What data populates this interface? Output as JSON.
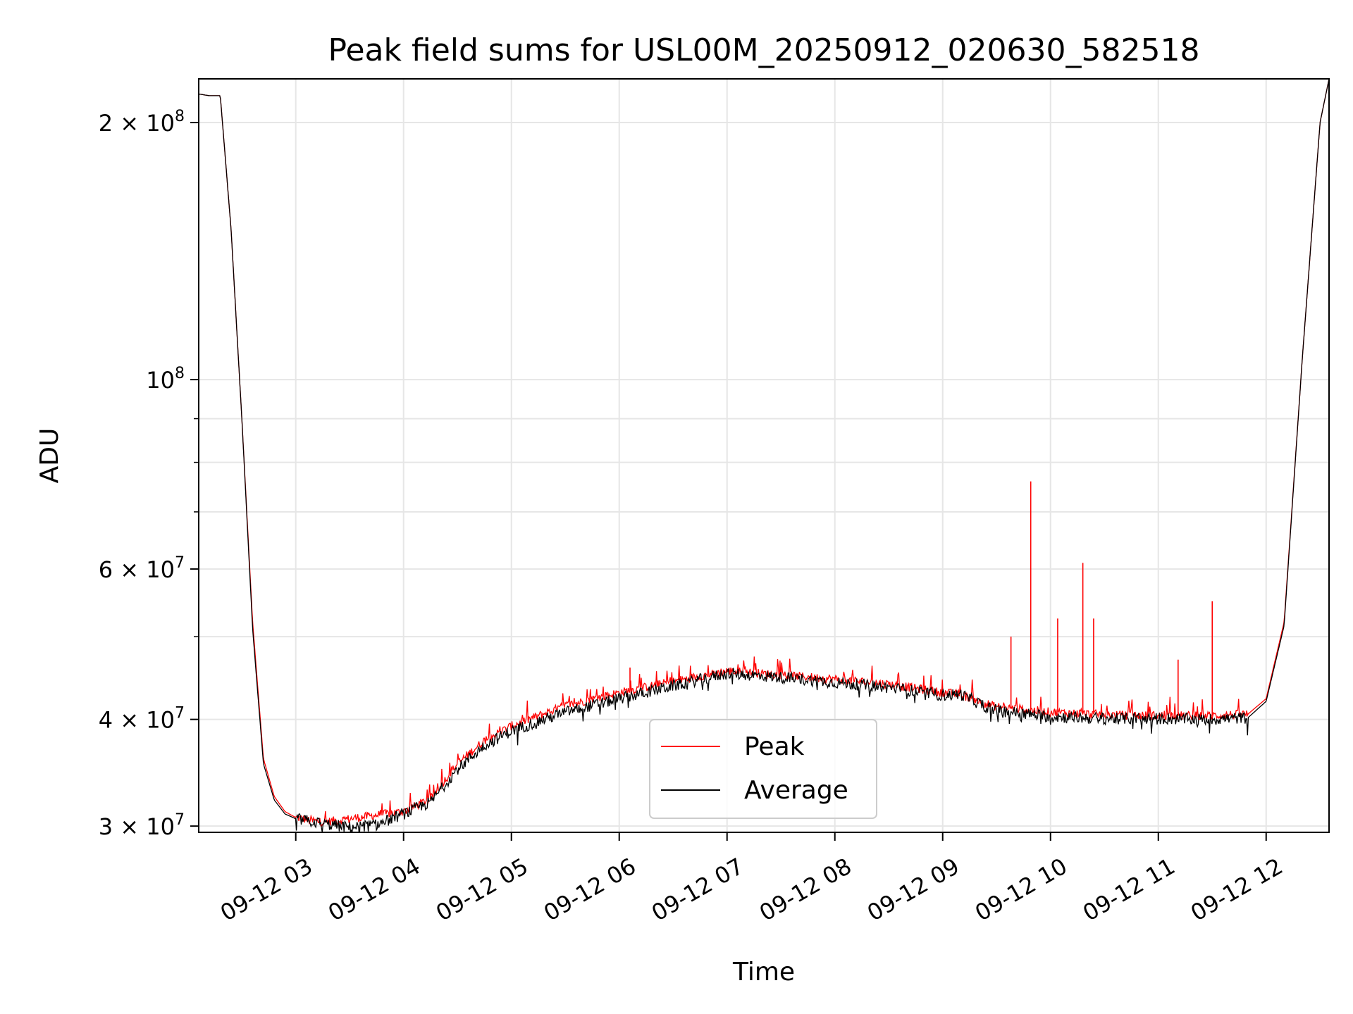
{
  "chart_data": {
    "type": "line",
    "title": "Peak field sums for USL00M_20250912_020630_582518",
    "xlabel": "Time",
    "ylabel": "ADU",
    "y_scale": "log",
    "ylim": [
      29500000,
      225000000
    ],
    "xlim": [
      "2025-09-12 02:06",
      "2025-09-12 12:35"
    ],
    "grid": true,
    "legend_location": "lower center",
    "x_tick_labels": [
      "09-12 03",
      "09-12 04",
      "09-12 05",
      "09-12 06",
      "09-12 07",
      "09-12 08",
      "09-12 09",
      "09-12 10",
      "09-12 11",
      "09-12 12"
    ],
    "x_ticks": [
      "2025-09-12 03:00",
      "2025-09-12 04:00",
      "2025-09-12 05:00",
      "2025-09-12 06:00",
      "2025-09-12 07:00",
      "2025-09-12 08:00",
      "2025-09-12 09:00",
      "2025-09-12 10:00",
      "2025-09-12 11:00",
      "2025-09-12 12:00"
    ],
    "y_ticks": [
      {
        "value": 30000000,
        "label": "3 × 10",
        "exp": "7"
      },
      {
        "value": 40000000,
        "label": "4 × 10",
        "exp": "7"
      },
      {
        "value": 60000000,
        "label": "6 × 10",
        "exp": "7"
      },
      {
        "value": 100000000,
        "label": "10",
        "exp": "8"
      },
      {
        "value": 200000000,
        "label": "2 × 10",
        "exp": "8"
      }
    ],
    "y_minor_ticks": [
      50000000,
      70000000,
      80000000,
      90000000
    ],
    "series": [
      {
        "name": "Peak",
        "color": "#ff0000",
        "x": [
          "2025-09-12 02:06",
          "2025-09-12 02:12",
          "2025-09-12 02:18",
          "2025-09-12 02:24",
          "2025-09-12 02:30",
          "2025-09-12 02:36",
          "2025-09-12 02:42",
          "2025-09-12 02:48",
          "2025-09-12 02:54",
          "2025-09-12 03:00",
          "2025-09-12 03:15",
          "2025-09-12 03:30",
          "2025-09-12 03:45",
          "2025-09-12 04:00",
          "2025-09-12 04:15",
          "2025-09-12 04:30",
          "2025-09-12 04:45",
          "2025-09-12 05:00",
          "2025-09-12 05:30",
          "2025-09-12 06:00",
          "2025-09-12 06:30",
          "2025-09-12 07:00",
          "2025-09-12 07:30",
          "2025-09-12 08:00",
          "2025-09-12 08:30",
          "2025-09-12 09:00",
          "2025-09-12 09:10",
          "2025-09-12 09:20",
          "2025-09-12 09:30",
          "2025-09-12 10:00",
          "2025-09-12 10:30",
          "2025-09-12 11:00",
          "2025-09-12 11:30",
          "2025-09-12 11:50",
          "2025-09-12 12:00",
          "2025-09-12 12:10",
          "2025-09-12 12:20",
          "2025-09-12 12:30",
          "2025-09-12 12:35"
        ],
        "values": [
          216000000,
          215000000,
          215000000,
          150000000,
          90000000,
          52000000,
          36000000,
          32500000,
          31200000,
          30700000,
          30300000,
          30600000,
          30900000,
          31200000,
          32300000,
          35500000,
          37800000,
          39300000,
          41500000,
          43000000,
          44300000,
          45600000,
          45100000,
          44600000,
          44000000,
          43000000,
          42800000,
          42000000,
          41400000,
          40800000,
          40500000,
          40400000,
          40400000,
          40600000,
          42300000,
          52000000,
          105000000,
          200000000,
          225000000
        ],
        "spikes": [
          {
            "x": "2025-09-12 09:49",
            "value": 76000000
          },
          {
            "x": "2025-09-12 10:18",
            "value": 61000000
          },
          {
            "x": "2025-09-12 10:24",
            "value": 52500000
          },
          {
            "x": "2025-09-12 10:04",
            "value": 52500000
          },
          {
            "x": "2025-09-12 11:30",
            "value": 55000000
          },
          {
            "x": "2025-09-12 09:38",
            "value": 50000000
          },
          {
            "x": "2025-09-12 11:11",
            "value": 47000000
          },
          {
            "x": "2025-09-12 06:06",
            "value": 46000000
          }
        ]
      },
      {
        "name": "Average",
        "color": "#000000",
        "x": [
          "2025-09-12 02:06",
          "2025-09-12 02:12",
          "2025-09-12 02:18",
          "2025-09-12 02:24",
          "2025-09-12 02:30",
          "2025-09-12 02:36",
          "2025-09-12 02:42",
          "2025-09-12 02:48",
          "2025-09-12 02:54",
          "2025-09-12 03:00",
          "2025-09-12 03:15",
          "2025-09-12 03:30",
          "2025-09-12 03:45",
          "2025-09-12 04:00",
          "2025-09-12 04:15",
          "2025-09-12 04:30",
          "2025-09-12 04:45",
          "2025-09-12 05:00",
          "2025-09-12 05:30",
          "2025-09-12 06:00",
          "2025-09-12 06:30",
          "2025-09-12 07:00",
          "2025-09-12 07:30",
          "2025-09-12 08:00",
          "2025-09-12 08:30",
          "2025-09-12 09:00",
          "2025-09-12 09:10",
          "2025-09-12 09:20",
          "2025-09-12 09:30",
          "2025-09-12 10:00",
          "2025-09-12 10:30",
          "2025-09-12 11:00",
          "2025-09-12 11:30",
          "2025-09-12 11:50",
          "2025-09-12 12:00",
          "2025-09-12 12:10",
          "2025-09-12 12:20",
          "2025-09-12 12:30",
          "2025-09-12 12:35"
        ],
        "values": [
          216000000,
          215000000,
          215000000,
          150000000,
          90000000,
          51000000,
          35500000,
          32200000,
          31000000,
          30600000,
          30200000,
          29900000,
          30100000,
          31000000,
          32000000,
          35000000,
          37300000,
          38800000,
          40800000,
          42300000,
          43800000,
          45300000,
          44800000,
          44200000,
          43600000,
          42700000,
          42800000,
          41800000,
          41000000,
          40300000,
          40100000,
          40100000,
          40000000,
          40200000,
          42000000,
          51500000,
          105000000,
          200000000,
          225000000
        ]
      }
    ]
  }
}
